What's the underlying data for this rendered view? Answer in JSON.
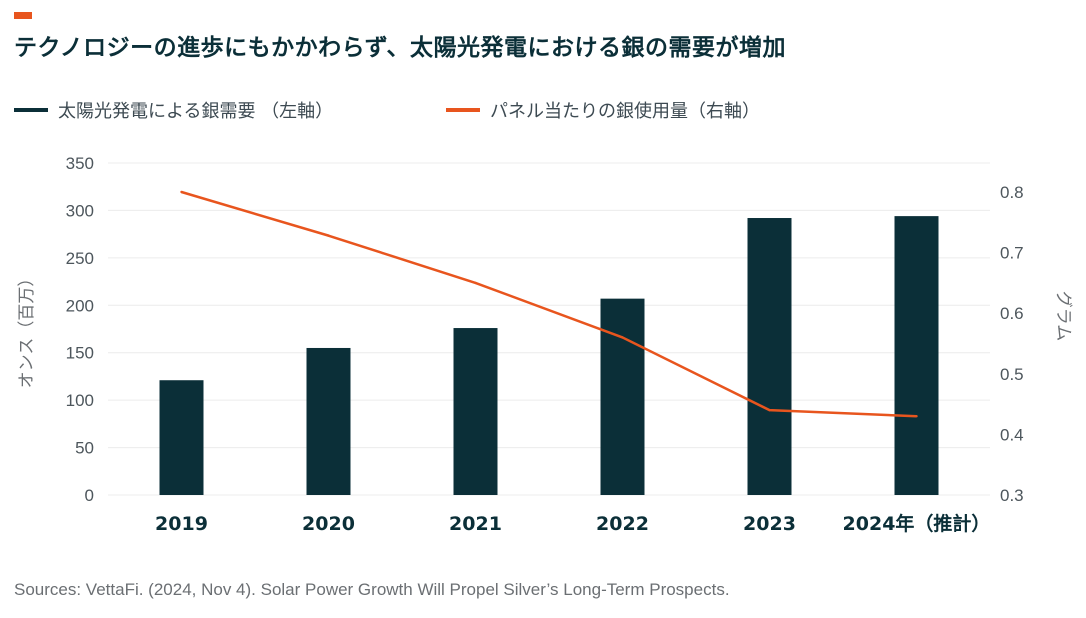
{
  "title": "テクノロジーの進歩にもかかわらず、太陽光発電における銀の需要が増加",
  "source": "Sources: VettaFi. (2024, Nov 4). Solar Power Growth Will Propel Silver’s Long-Term Prospects.",
  "colors": {
    "accent": "#e8551e",
    "bar": "#0b2f38",
    "line": "#e8551e",
    "grid": "#ececec"
  },
  "chart_data": {
    "type": "bar",
    "categories": [
      "2019",
      "2020",
      "2021",
      "2022",
      "2023",
      "2024年（推計）"
    ],
    "series": [
      {
        "name": "太陽光発電による銀需要 （左軸）",
        "type": "bar",
        "axis": "left",
        "values": [
          121,
          155,
          176,
          207,
          292,
          294
        ]
      },
      {
        "name": "パネル当たりの銀使用量（右軸）",
        "type": "line",
        "axis": "right",
        "values": [
          0.8,
          0.728,
          0.65,
          0.56,
          0.44,
          0.43
        ]
      }
    ],
    "ylabel_left": "オンス（百万）",
    "ylabel_right": "グラム",
    "ylim_left": [
      0,
      350
    ],
    "ylim_right": [
      0.3,
      0.8
    ],
    "yticks_left": [
      "0",
      "50",
      "100",
      "150",
      "200",
      "250",
      "300",
      "350"
    ],
    "yticks_right": [
      "0.3",
      "0.4",
      "0.5",
      "0.6",
      "0.7",
      "0.8"
    ],
    "grid": true,
    "legend_position": "top-left"
  }
}
